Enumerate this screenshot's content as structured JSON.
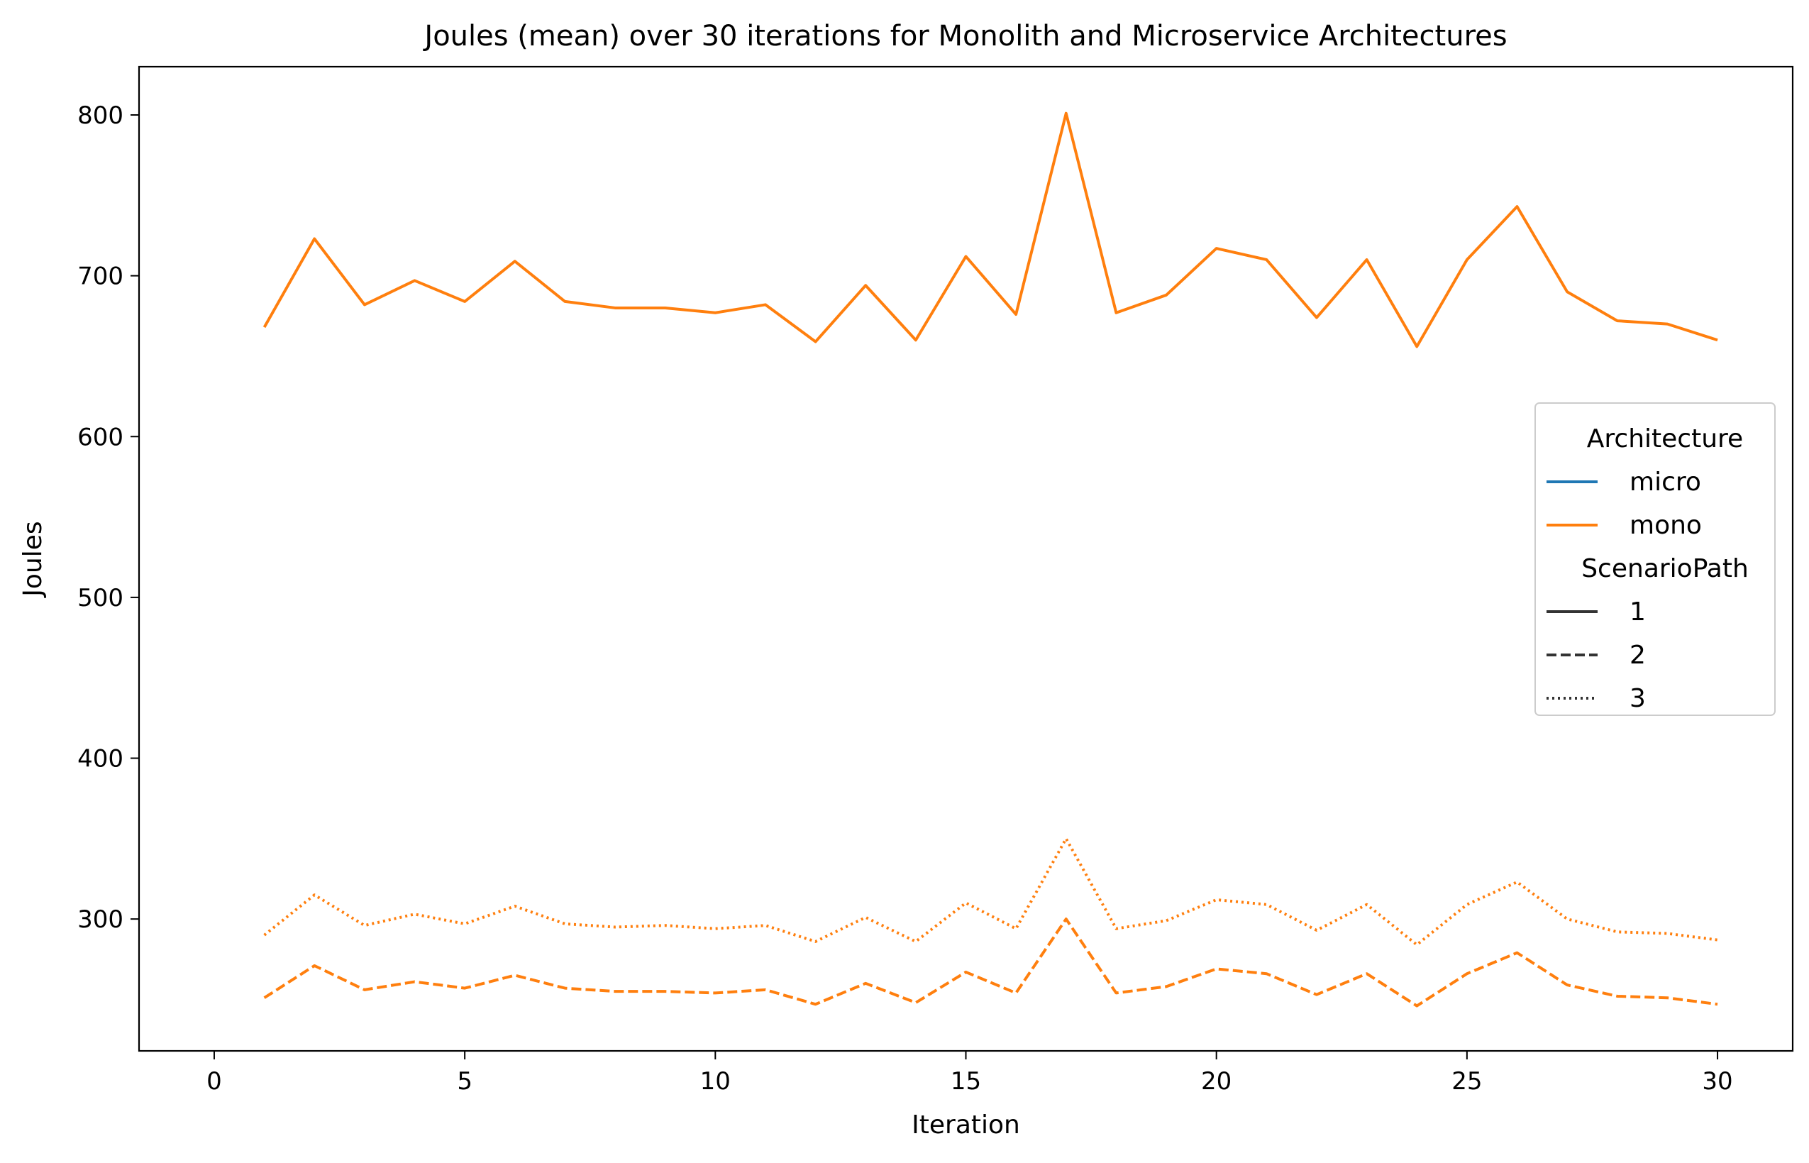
{
  "chart_data": {
    "type": "line",
    "title": "Joules (mean) over 30 iterations for Monolith and Microservice Architectures",
    "xlabel": "Iteration",
    "ylabel": "Joules",
    "xlim": [
      -1.5,
      31.5
    ],
    "ylim": [
      218,
      830
    ],
    "xticks": [
      0,
      5,
      10,
      15,
      20,
      25,
      30
    ],
    "yticks": [
      300,
      400,
      500,
      600,
      700,
      800
    ],
    "grid": false,
    "legend_position": "center-right",
    "colors": {
      "micro": "#1f77b4",
      "mono": "#ff7f0e"
    },
    "x": [
      1,
      2,
      3,
      4,
      5,
      6,
      7,
      8,
      9,
      10,
      11,
      12,
      13,
      14,
      15,
      16,
      17,
      18,
      19,
      20,
      21,
      22,
      23,
      24,
      25,
      26,
      27,
      28,
      29,
      30
    ],
    "series": [
      {
        "architecture": "mono",
        "scenario": "1",
        "style": "solid",
        "values": [
          668,
          723,
          682,
          697,
          684,
          709,
          684,
          680,
          680,
          677,
          682,
          659,
          694,
          660,
          712,
          676,
          801,
          677,
          688,
          717,
          710,
          674,
          710,
          656,
          710,
          743,
          690,
          672,
          670,
          660
        ]
      },
      {
        "architecture": "mono",
        "scenario": "2",
        "style": "dashed",
        "values": [
          251,
          271,
          256,
          261,
          257,
          265,
          257,
          255,
          255,
          254,
          256,
          247,
          260,
          248,
          267,
          254,
          300,
          254,
          258,
          269,
          266,
          253,
          266,
          246,
          266,
          279,
          259,
          252,
          251,
          247
        ]
      },
      {
        "architecture": "mono",
        "scenario": "3",
        "style": "dotted",
        "values": [
          290,
          315,
          296,
          303,
          297,
          308,
          297,
          295,
          296,
          294,
          296,
          286,
          301,
          286,
          310,
          294,
          350,
          294,
          299,
          312,
          309,
          293,
          309,
          284,
          309,
          323,
          300,
          292,
          291,
          287
        ]
      }
    ],
    "legend": {
      "hue_title": "Architecture",
      "hue_entries": [
        {
          "label": "micro",
          "color_key": "micro"
        },
        {
          "label": "mono",
          "color_key": "mono"
        }
      ],
      "style_title": "ScenarioPath",
      "style_entries": [
        {
          "label": "1",
          "style": "solid"
        },
        {
          "label": "2",
          "style": "dashed"
        },
        {
          "label": "3",
          "style": "dotted"
        }
      ]
    }
  }
}
